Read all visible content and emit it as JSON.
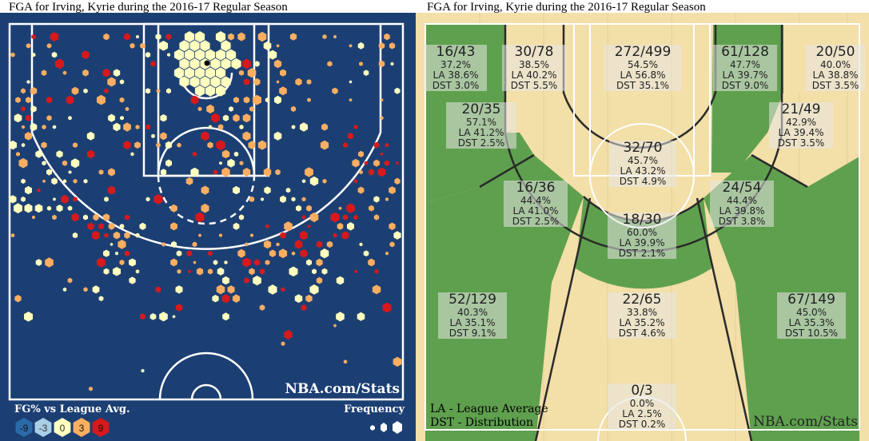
{
  "titles": {
    "left": "FGA for Irving, Kyrie during the 2016-17 Regular Season",
    "right": "FGA for Irving, Kyrie during the 2016-17 Regular Season"
  },
  "left_chart": {
    "watermark": "NBA.com/Stats",
    "legend_title": "FG% vs League Avg.",
    "legend_values": [
      "-9",
      "-3",
      "0",
      "3",
      "9"
    ],
    "legend_colors": [
      "#2b6aa9",
      "#a9cfe8",
      "#ffffbf",
      "#fdae61",
      "#d7191c"
    ],
    "frequency_label": "Frequency",
    "colors": {
      "court_bg": "#1c3f73",
      "court_line": "#ffffff",
      "marker": "#000000"
    }
  },
  "right_chart": {
    "watermark": "NBA.com/Stats",
    "legend": [
      "LA - League Average",
      "DST - Distribution"
    ],
    "colors": {
      "light_wood": "#f3dfa8",
      "green": "#5fa04e",
      "line": "#2a2a2a"
    }
  },
  "chart_data": [
    {
      "type": "scatter",
      "subtype": "hexbin",
      "title": "FGA for Irving, Kyrie during the 2016-17 Regular Season",
      "color_scale_label": "FG% vs League Avg.",
      "color_scale": [
        -9,
        -3,
        0,
        3,
        9
      ],
      "size_label": "Frequency"
    },
    {
      "type": "table",
      "subtype": "zone-map",
      "title": "FGA for Irving, Kyrie during the 2016-17 Regular Season",
      "zones": [
        {
          "id": "left-corner-3",
          "fgm_fga": "16/43",
          "fg_pct": "37.2%",
          "la": "LA 38.6%",
          "dst": "DST 3.0%"
        },
        {
          "id": "left-long-baseline",
          "fgm_fga": "30/78",
          "fg_pct": "38.5%",
          "la": "LA 40.2%",
          "dst": "DST 5.5%"
        },
        {
          "id": "restricted-area",
          "fgm_fga": "272/499",
          "fg_pct": "54.5%",
          "la": "LA 56.8%",
          "dst": "DST 35.1%"
        },
        {
          "id": "right-long-baseline",
          "fgm_fga": "61/128",
          "fg_pct": "47.7%",
          "la": "LA 39.7%",
          "dst": "DST 9.0%"
        },
        {
          "id": "right-corner-3",
          "fgm_fga": "20/50",
          "fg_pct": "40.0%",
          "la": "LA 38.8%",
          "dst": "DST 3.5%"
        },
        {
          "id": "left-short-wing",
          "fgm_fga": "20/35",
          "fg_pct": "57.1%",
          "la": "LA 41.2%",
          "dst": "DST 2.5%"
        },
        {
          "id": "paint-non-ra",
          "fgm_fga": "32/70",
          "fg_pct": "45.7%",
          "la": "LA 43.2%",
          "dst": "DST 4.9%"
        },
        {
          "id": "right-short-wing",
          "fgm_fga": "21/49",
          "fg_pct": "42.9%",
          "la": "LA 39.4%",
          "dst": "DST 3.5%"
        },
        {
          "id": "left-elbow-mid",
          "fgm_fga": "16/36",
          "fg_pct": "44.4%",
          "la": "LA 41.0%",
          "dst": "DST 2.5%"
        },
        {
          "id": "right-elbow-mid",
          "fgm_fga": "24/54",
          "fg_pct": "44.4%",
          "la": "LA 39.8%",
          "dst": "DST 3.8%"
        },
        {
          "id": "top-key-mid",
          "fgm_fga": "18/30",
          "fg_pct": "60.0%",
          "la": "LA 39.9%",
          "dst": "DST 2.1%"
        },
        {
          "id": "left-wing-3",
          "fgm_fga": "52/129",
          "fg_pct": "40.3%",
          "la": "LA 35.1%",
          "dst": "DST 9.1%"
        },
        {
          "id": "top-key-3",
          "fgm_fga": "22/65",
          "fg_pct": "33.8%",
          "la": "LA 35.2%",
          "dst": "DST 4.6%"
        },
        {
          "id": "right-wing-3",
          "fgm_fga": "67/149",
          "fg_pct": "45.0%",
          "la": "LA 35.3%",
          "dst": "DST 10.5%"
        },
        {
          "id": "backcourt",
          "fgm_fga": "0/3",
          "fg_pct": "0.0%",
          "la": "LA 2.5%",
          "dst": "DST 0.2%"
        }
      ]
    }
  ]
}
